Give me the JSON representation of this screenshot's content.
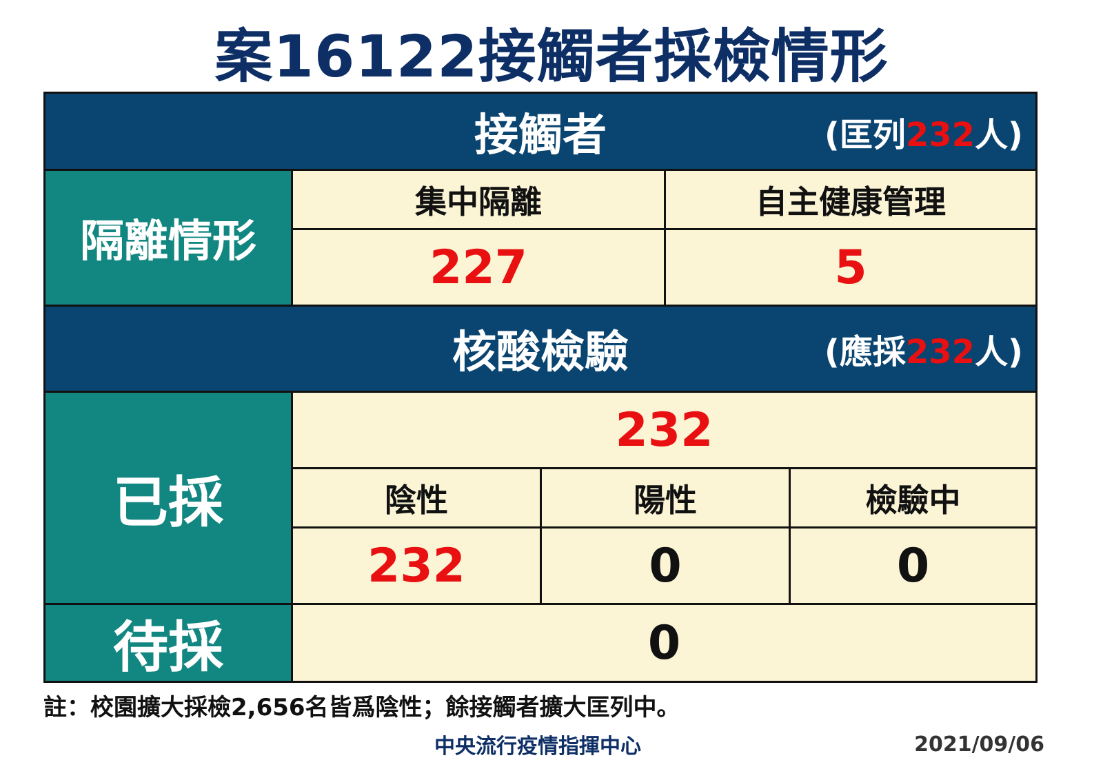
{
  "title": "案16122接觸者採檢情形",
  "contacts": {
    "header": "接觸者",
    "listed_prefix": "(匡列",
    "listed_count": "232",
    "listed_suffix": "人)",
    "isolation_label": "隔離情形",
    "columns": [
      "集中隔離",
      "自主健康管理"
    ],
    "values": [
      "227",
      "5"
    ]
  },
  "testing": {
    "header": "核酸檢驗",
    "required_prefix": "(應採",
    "required_count": "232",
    "required_suffix": "人)",
    "sampled_label": "已採",
    "sampled_total": "232",
    "columns": [
      "陰性",
      "陽性",
      "檢驗中"
    ],
    "values": [
      "232",
      "0",
      "0"
    ],
    "pending_label": "待採",
    "pending_value": "0"
  },
  "note": "註：校園擴大採檢2,656名皆爲陰性；餘接觸者擴大匡列中。",
  "organization": "中央流行疫情指揮中心",
  "date": "2021/09/06",
  "colors": {
    "navy": "#0a4470",
    "teal": "#128680",
    "cream": "#fbf5d6",
    "red": "#e81010",
    "title": "#0e2f66"
  }
}
